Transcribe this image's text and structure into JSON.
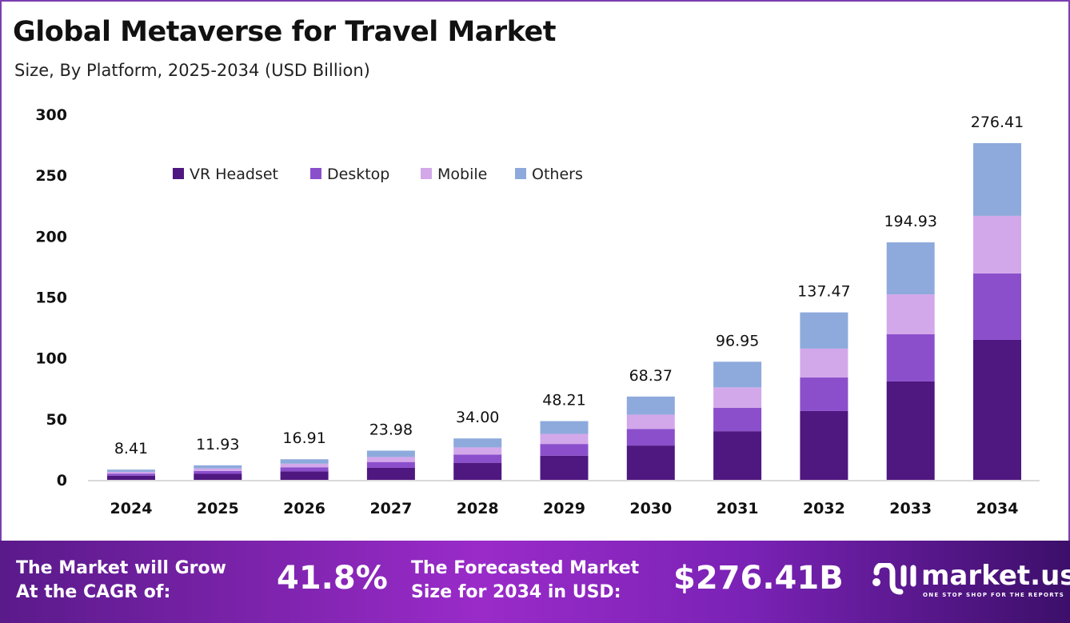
{
  "header": {
    "title": "Global Metaverse for Travel Market",
    "subtitle": "Size, By Platform, 2025-2034 (USD Billion)"
  },
  "chart_data": {
    "type": "bar",
    "stacked": true,
    "categories": [
      "2024",
      "2025",
      "2026",
      "2027",
      "2028",
      "2029",
      "2030",
      "2031",
      "2032",
      "2033",
      "2034"
    ],
    "totals": [
      "8.41",
      "11.93",
      "16.91",
      "23.98",
      "34.00",
      "48.21",
      "68.37",
      "96.95",
      "137.47",
      "194.93",
      "276.41"
    ],
    "series": [
      {
        "name": "VR Headset",
        "color": "#4f1780",
        "values": [
          3.46,
          4.92,
          6.97,
          9.88,
          14.01,
          19.86,
          28.17,
          39.94,
          56.5,
          80.8,
          114.9
        ]
      },
      {
        "name": "Desktop",
        "color": "#8b4fcc",
        "values": [
          1.67,
          2.37,
          3.37,
          4.77,
          6.77,
          9.59,
          13.61,
          19.29,
          27.5,
          38.7,
          54.5
        ]
      },
      {
        "name": "Mobile",
        "color": "#d3a8ea",
        "values": [
          1.45,
          2.05,
          2.91,
          4.12,
          5.85,
          8.29,
          11.76,
          16.68,
          23.7,
          32.8,
          47.3
        ]
      },
      {
        "name": "Others",
        "color": "#8eaadc",
        "values": [
          1.83,
          2.59,
          3.66,
          5.21,
          7.37,
          10.47,
          14.83,
          21.04,
          29.77,
          42.63,
          59.71
        ]
      }
    ],
    "yticks": [
      "0",
      "50",
      "100",
      "150",
      "200",
      "250",
      "300"
    ],
    "ylim": [
      0,
      300
    ],
    "grid": false,
    "legend_position": "top-left"
  },
  "footer": {
    "cagr_label": [
      "The Market will Grow",
      "At the CAGR of:"
    ],
    "cagr_value": "41.8%",
    "forecast_label": [
      "The Forecasted Market",
      "Size for 2034 in USD:"
    ],
    "forecast_value": "$276.41B",
    "logo_name": "market.us",
    "logo_tagline": "ONE STOP SHOP FOR THE REPORTS"
  }
}
